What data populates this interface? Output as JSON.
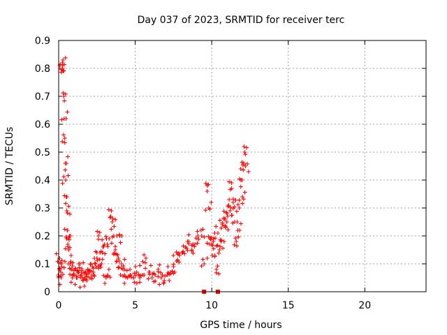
{
  "chart_data": {
    "type": "scatter",
    "title": "Day 037 of 2023, SRMTID for receiver terc",
    "xlabel": "GPS time / hours",
    "ylabel": "SRMTID / TECUs",
    "xlim": [
      0,
      24
    ],
    "ylim": [
      0,
      0.9
    ],
    "xticks": [
      "0",
      "5",
      "10",
      "15",
      "20"
    ],
    "yticks": [
      "0",
      "0.1",
      "0.2",
      "0.3",
      "0.4",
      "0.5",
      "0.6",
      "0.7",
      "0.8",
      "0.9"
    ],
    "grid": true,
    "marker": "plus",
    "color": "#ff0000",
    "series": [
      {
        "name": "SRMTID",
        "x": [
          0.0,
          0.05,
          0.1,
          0.15,
          0.2,
          0.25,
          0.28,
          0.3,
          0.33,
          0.36,
          0.4,
          0.43,
          0.46,
          0.5,
          0.53,
          0.56,
          0.6,
          0.65,
          0.7,
          0.75,
          0.8,
          0.9,
          1.0,
          1.1,
          1.2,
          1.3,
          1.4,
          1.5,
          1.6,
          1.7,
          1.8,
          1.9,
          2.0,
          2.1,
          2.2,
          2.3,
          2.4,
          2.5,
          2.6,
          2.7,
          2.8,
          2.9,
          3.0,
          3.1,
          3.2,
          3.3,
          3.4,
          3.5,
          3.6,
          3.7,
          3.8,
          3.9,
          4.0,
          4.1,
          4.2,
          4.3,
          4.5,
          4.7,
          4.9,
          5.1,
          5.3,
          5.5,
          5.7,
          5.9,
          6.1,
          6.3,
          6.5,
          6.7,
          6.9,
          7.1,
          7.3,
          7.5,
          7.7,
          7.9,
          8.1,
          8.3,
          8.5,
          8.7,
          8.9,
          9.1,
          9.3,
          9.5,
          9.7,
          9.8,
          9.9,
          10.0,
          10.1,
          10.2,
          10.3,
          10.4,
          10.5,
          10.6,
          10.7,
          10.8,
          10.9,
          11.0,
          11.1,
          11.2,
          11.3,
          11.4,
          11.5,
          11.6,
          11.7,
          11.8,
          11.9,
          12.0,
          12.1,
          12.15,
          12.2
        ],
        "y": [
          0.05,
          0.12,
          0.08,
          0.07,
          0.1,
          0.8,
          0.83,
          0.79,
          0.7,
          0.62,
          0.55,
          0.46,
          0.4,
          0.34,
          0.29,
          0.22,
          0.17,
          0.15,
          0.2,
          0.1,
          0.08,
          0.05,
          0.06,
          0.08,
          0.05,
          0.07,
          0.1,
          0.06,
          0.04,
          0.05,
          0.06,
          0.08,
          0.07,
          0.05,
          0.09,
          0.06,
          0.1,
          0.12,
          0.2,
          0.14,
          0.1,
          0.16,
          0.17,
          0.05,
          0.06,
          0.19,
          0.27,
          0.25,
          0.2,
          0.15,
          0.11,
          0.12,
          0.2,
          0.1,
          0.08,
          0.06,
          0.05,
          0.06,
          0.05,
          0.07,
          0.05,
          0.06,
          0.12,
          0.07,
          0.05,
          0.06,
          0.08,
          0.05,
          0.04,
          0.06,
          0.07,
          0.09,
          0.11,
          0.13,
          0.14,
          0.16,
          0.18,
          0.15,
          0.17,
          0.2,
          0.22,
          0.1,
          0.38,
          0.3,
          0.19,
          0.17,
          0.18,
          0.13,
          0.08,
          0.21,
          0.15,
          0.18,
          0.24,
          0.26,
          0.23,
          0.28,
          0.31,
          0.29,
          0.37,
          0.32,
          0.25,
          0.18,
          0.22,
          0.3,
          0.4,
          0.34,
          0.46,
          0.5,
          0.45
        ],
        "zero_markers_x": [
          9.5,
          10.4
        ]
      }
    ]
  }
}
